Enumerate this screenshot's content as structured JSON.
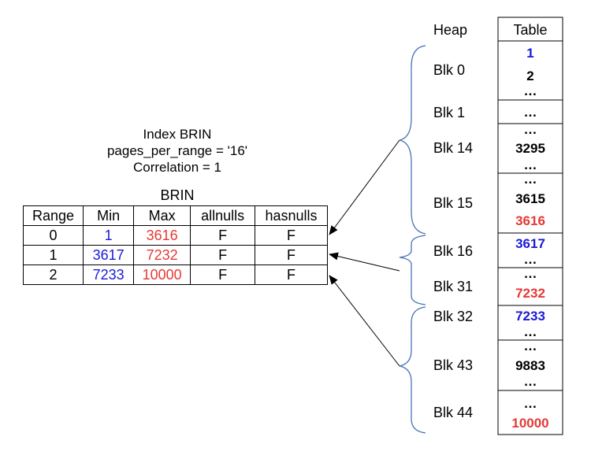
{
  "index_info": {
    "line1": "Index BRIN",
    "line2": "pages_per_range = '16'",
    "line3": "Correlation = 1"
  },
  "brin_table": {
    "title": "BRIN",
    "headers": [
      "Range",
      "Min",
      "Max",
      "allnulls",
      "hasnulls"
    ],
    "rows": [
      [
        "0",
        "1",
        "3616",
        "F",
        "F"
      ],
      [
        "1",
        "3617",
        "7232",
        "F",
        "F"
      ],
      [
        "2",
        "7233",
        "10000",
        "F",
        "F"
      ]
    ]
  },
  "heap": {
    "title": "Heap",
    "blocks": [
      "Blk 0",
      "Blk 1",
      "Blk 14",
      "Blk 15",
      "Blk 16",
      "Blk 31",
      "Blk 32",
      "Blk 43",
      "Blk 44"
    ]
  },
  "table": {
    "title": "Table",
    "cells": [
      [
        "1",
        "2",
        "…"
      ],
      [
        "…"
      ],
      [
        "…",
        "3295",
        "…"
      ],
      [
        "…",
        "3615",
        "3616"
      ],
      [
        "3617",
        "…"
      ],
      [
        "…",
        "7232"
      ],
      [
        "7233",
        "…"
      ],
      [
        "…",
        "9883",
        "…"
      ],
      [
        "…",
        "10000"
      ]
    ]
  },
  "colors": {
    "min_value": "#1a1ad6",
    "max_value": "#e53935",
    "brace": "#4a72b8"
  }
}
